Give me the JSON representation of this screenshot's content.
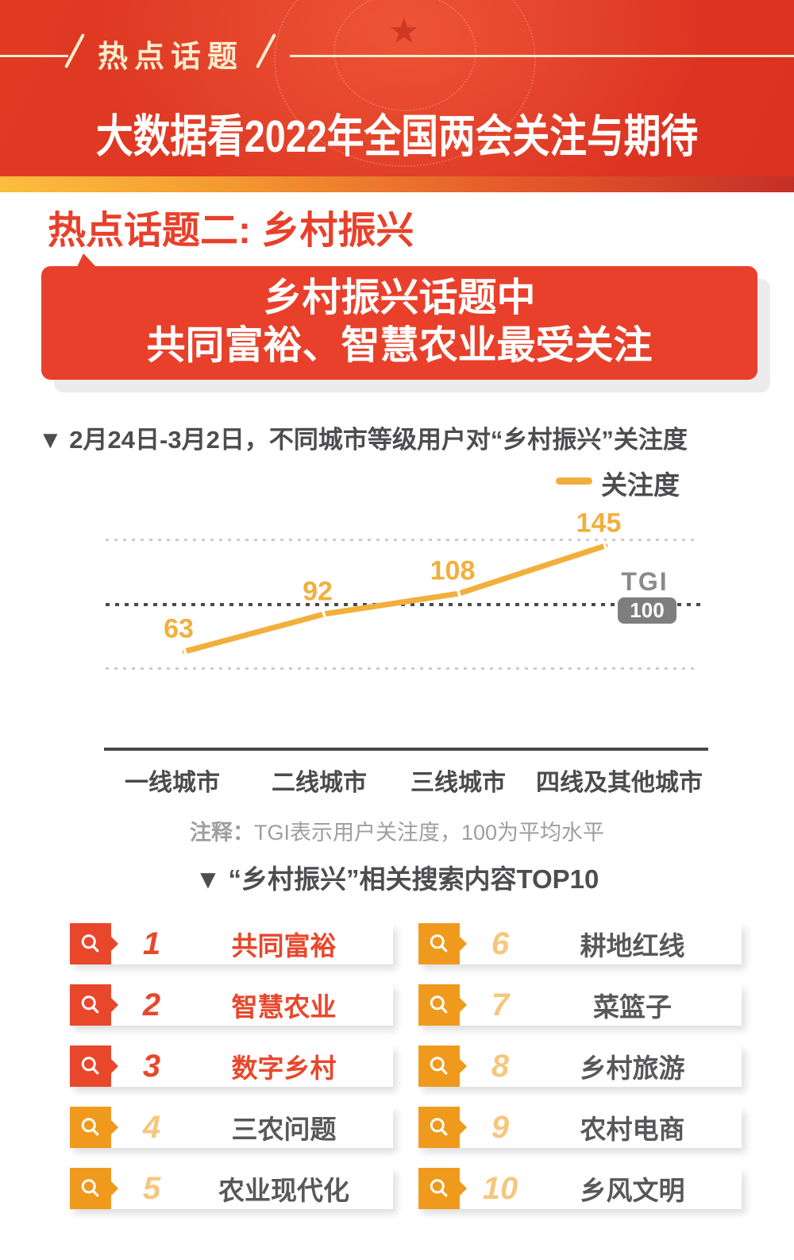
{
  "colors": {
    "header_red": "#E03A23",
    "accent_red": "#E8402B",
    "badge_red": "#E8472B",
    "badge_orange": "#EF9A1D",
    "rank_light_orange": "#F5C77E",
    "line_yellow": "#F2AF3C",
    "text_dark": "#4D4D50",
    "text_gray": "#9E9E9E",
    "tgi_gray": "#7E7E7E",
    "cream": "#FAEDCE"
  },
  "header": {
    "tagline": "热点话题",
    "title": "大数据看2022年全国两会关注与期待",
    "star_icon": "star"
  },
  "section": {
    "heading": "热点话题二: 乡村振兴",
    "bubble_line1": "乡村振兴话题中",
    "bubble_line2": "共同富裕、智慧农业最受关注"
  },
  "chart": {
    "title": "▼ 2月24日-3月2日，不同城市等级用户对“乡村振兴”关注度",
    "legend_label": "关注度",
    "tgi_label": "TGI",
    "tgi_value": "100",
    "note_prefix": "注释：",
    "note_text": "TGI表示用户关注度，100为平均水平"
  },
  "chart_data": {
    "type": "line",
    "title": "2月24日-3月2日，不同城市等级用户对“乡村振兴”关注度",
    "categories": [
      "一线城市",
      "二线城市",
      "三线城市",
      "四线及其他城市"
    ],
    "series": [
      {
        "name": "关注度",
        "values": [
          63,
          92,
          108,
          145
        ]
      }
    ],
    "ylim": [
      0,
      160
    ],
    "gridlines": [
      {
        "value": 150,
        "style": "light"
      },
      {
        "value": 100,
        "style": "dark"
      },
      {
        "value": 50,
        "style": "light"
      }
    ],
    "reference_line": {
      "label": "TGI",
      "value": 100
    },
    "legend_position": "top-right",
    "line_color": "#F2AF3C",
    "grid": true
  },
  "top10": {
    "title": "▼ “乡村振兴”相关搜索内容TOP10",
    "items": [
      {
        "rank": "1",
        "label": "共同富裕",
        "highlight": true
      },
      {
        "rank": "2",
        "label": "智慧农业",
        "highlight": true
      },
      {
        "rank": "3",
        "label": "数字乡村",
        "highlight": true
      },
      {
        "rank": "4",
        "label": "三农问题",
        "highlight": false
      },
      {
        "rank": "5",
        "label": "农业现代化",
        "highlight": false
      },
      {
        "rank": "6",
        "label": "耕地红线",
        "highlight": false
      },
      {
        "rank": "7",
        "label": "菜篮子",
        "highlight": false
      },
      {
        "rank": "8",
        "label": "乡村旅游",
        "highlight": false
      },
      {
        "rank": "9",
        "label": "农村电商",
        "highlight": false
      },
      {
        "rank": "10",
        "label": "乡风文明",
        "highlight": false
      }
    ]
  }
}
